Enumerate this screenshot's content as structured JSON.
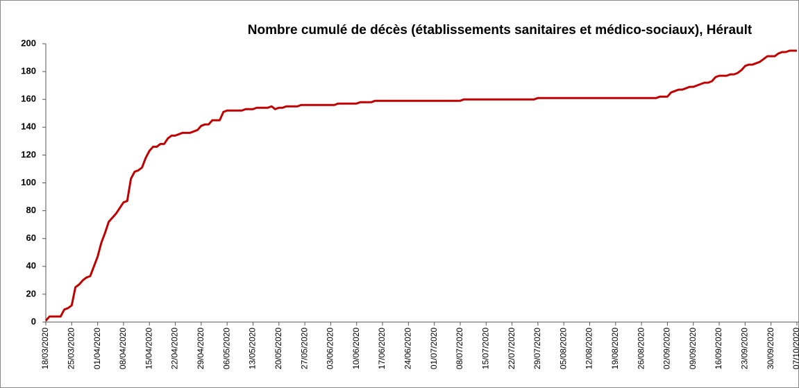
{
  "chart_data": {
    "type": "line",
    "title": "Nombre cumulé de décès (établissements sanitaires et médico-sociaux), Hérault",
    "categories": [
      "18/03/2020",
      null,
      null,
      null,
      null,
      null,
      null,
      "25/03/2020",
      null,
      null,
      null,
      null,
      null,
      null,
      "01/04/2020",
      null,
      null,
      null,
      null,
      null,
      null,
      "08/04/2020",
      null,
      null,
      null,
      null,
      null,
      null,
      "15/04/2020",
      null,
      null,
      null,
      null,
      null,
      null,
      "22/04/2020",
      null,
      null,
      null,
      null,
      null,
      null,
      "29/04/2020",
      null,
      null,
      null,
      null,
      null,
      null,
      "06/05/2020",
      null,
      null,
      null,
      null,
      null,
      null,
      "13/05/2020",
      null,
      null,
      null,
      null,
      null,
      null,
      "20/05/2020",
      null,
      null,
      null,
      null,
      null,
      null,
      "27/05/2020",
      null,
      null,
      null,
      null,
      null,
      null,
      "03/06/2020",
      null,
      null,
      null,
      null,
      null,
      null,
      "10/06/2020",
      null,
      null,
      null,
      null,
      null,
      null,
      "17/06/2020",
      null,
      null,
      null,
      null,
      null,
      null,
      "24/06/2020",
      null,
      null,
      null,
      null,
      null,
      null,
      "01/07/2020",
      null,
      null,
      null,
      null,
      null,
      null,
      "08/07/2020",
      null,
      null,
      null,
      null,
      null,
      null,
      "15/07/2020",
      null,
      null,
      null,
      null,
      null,
      null,
      "22/07/2020",
      null,
      null,
      null,
      null,
      null,
      null,
      "29/07/2020",
      null,
      null,
      null,
      null,
      null,
      null,
      "05/08/2020",
      null,
      null,
      null,
      null,
      null,
      null,
      "12/08/2020",
      null,
      null,
      null,
      null,
      null,
      null,
      "19/08/2020",
      null,
      null,
      null,
      null,
      null,
      null,
      "26/08/2020",
      null,
      null,
      null,
      null,
      null,
      null,
      "02/09/2020",
      null,
      null,
      null,
      null,
      null,
      null,
      "09/09/2020",
      null,
      null,
      null,
      null,
      null,
      null,
      "16/09/2020",
      null,
      null,
      null,
      null,
      null,
      null,
      "23/09/2020",
      null,
      null,
      null,
      null,
      null,
      null,
      "30/09/2020",
      null,
      null,
      null,
      null,
      null,
      null,
      "07/10/2020"
    ],
    "values": [
      1,
      4,
      4,
      4,
      4,
      9,
      10,
      12,
      25,
      27,
      30,
      32,
      33,
      40,
      47,
      57,
      64,
      72,
      75,
      78,
      82,
      86,
      87,
      103,
      108,
      109,
      111,
      118,
      123,
      126,
      126,
      128,
      128,
      132,
      134,
      134,
      135,
      136,
      136,
      136,
      137,
      138,
      141,
      142,
      142,
      145,
      145,
      145,
      151,
      152,
      152,
      152,
      152,
      152,
      153,
      153,
      153,
      154,
      154,
      154,
      154,
      155,
      153,
      154,
      154,
      155,
      155,
      155,
      155,
      156,
      156,
      156,
      156,
      156,
      156,
      156,
      156,
      156,
      156,
      157,
      157,
      157,
      157,
      157,
      157,
      158,
      158,
      158,
      158,
      159,
      159,
      159,
      159,
      159,
      159,
      159,
      159,
      159,
      159,
      159,
      159,
      159,
      159,
      159,
      159,
      159,
      159,
      159,
      159,
      159,
      159,
      159,
      159,
      160,
      160,
      160,
      160,
      160,
      160,
      160,
      160,
      160,
      160,
      160,
      160,
      160,
      160,
      160,
      160,
      160,
      160,
      160,
      160,
      161,
      161,
      161,
      161,
      161,
      161,
      161,
      161,
      161,
      161,
      161,
      161,
      161,
      161,
      161,
      161,
      161,
      161,
      161,
      161,
      161,
      161,
      161,
      161,
      161,
      161,
      161,
      161,
      161,
      161,
      161,
      161,
      161,
      162,
      162,
      162,
      165,
      166,
      167,
      167,
      168,
      169,
      169,
      170,
      171,
      172,
      172,
      173,
      176,
      177,
      177,
      177,
      178,
      178,
      179,
      181,
      184,
      185,
      185,
      186,
      187,
      189,
      191,
      191,
      191,
      193,
      194,
      194,
      195,
      195,
      195
    ],
    "color": "#c00000",
    "ylim": [
      0,
      200
    ],
    "yticks": [
      0,
      20,
      40,
      60,
      80,
      100,
      120,
      140,
      160,
      180,
      200
    ],
    "grid": false
  }
}
